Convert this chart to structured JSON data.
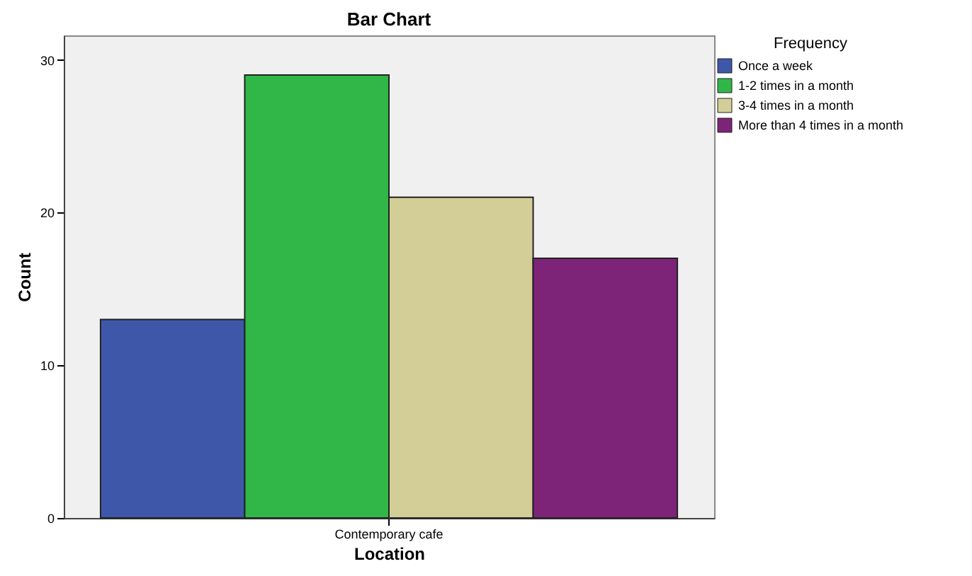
{
  "chart_data": {
    "type": "bar",
    "title": "Bar Chart",
    "xlabel": "Location",
    "ylabel": "Count",
    "legend_title": "Frequency",
    "categories": [
      "Contemporary cafe"
    ],
    "series": [
      {
        "name": "Once a week",
        "color": "#3f57a9",
        "values": [
          13
        ]
      },
      {
        "name": "1-2 times in a month",
        "color": "#31b648",
        "values": [
          29
        ]
      },
      {
        "name": "3-4 times in a month",
        "color": "#d3ce97",
        "values": [
          21
        ]
      },
      {
        "name": "More than 4 times in a month",
        "color": "#7d2479",
        "values": [
          17
        ]
      }
    ],
    "ylim": [
      0,
      31.6
    ],
    "yticks": [
      0,
      10,
      20,
      30
    ],
    "grid": false,
    "legend": "top right"
  }
}
